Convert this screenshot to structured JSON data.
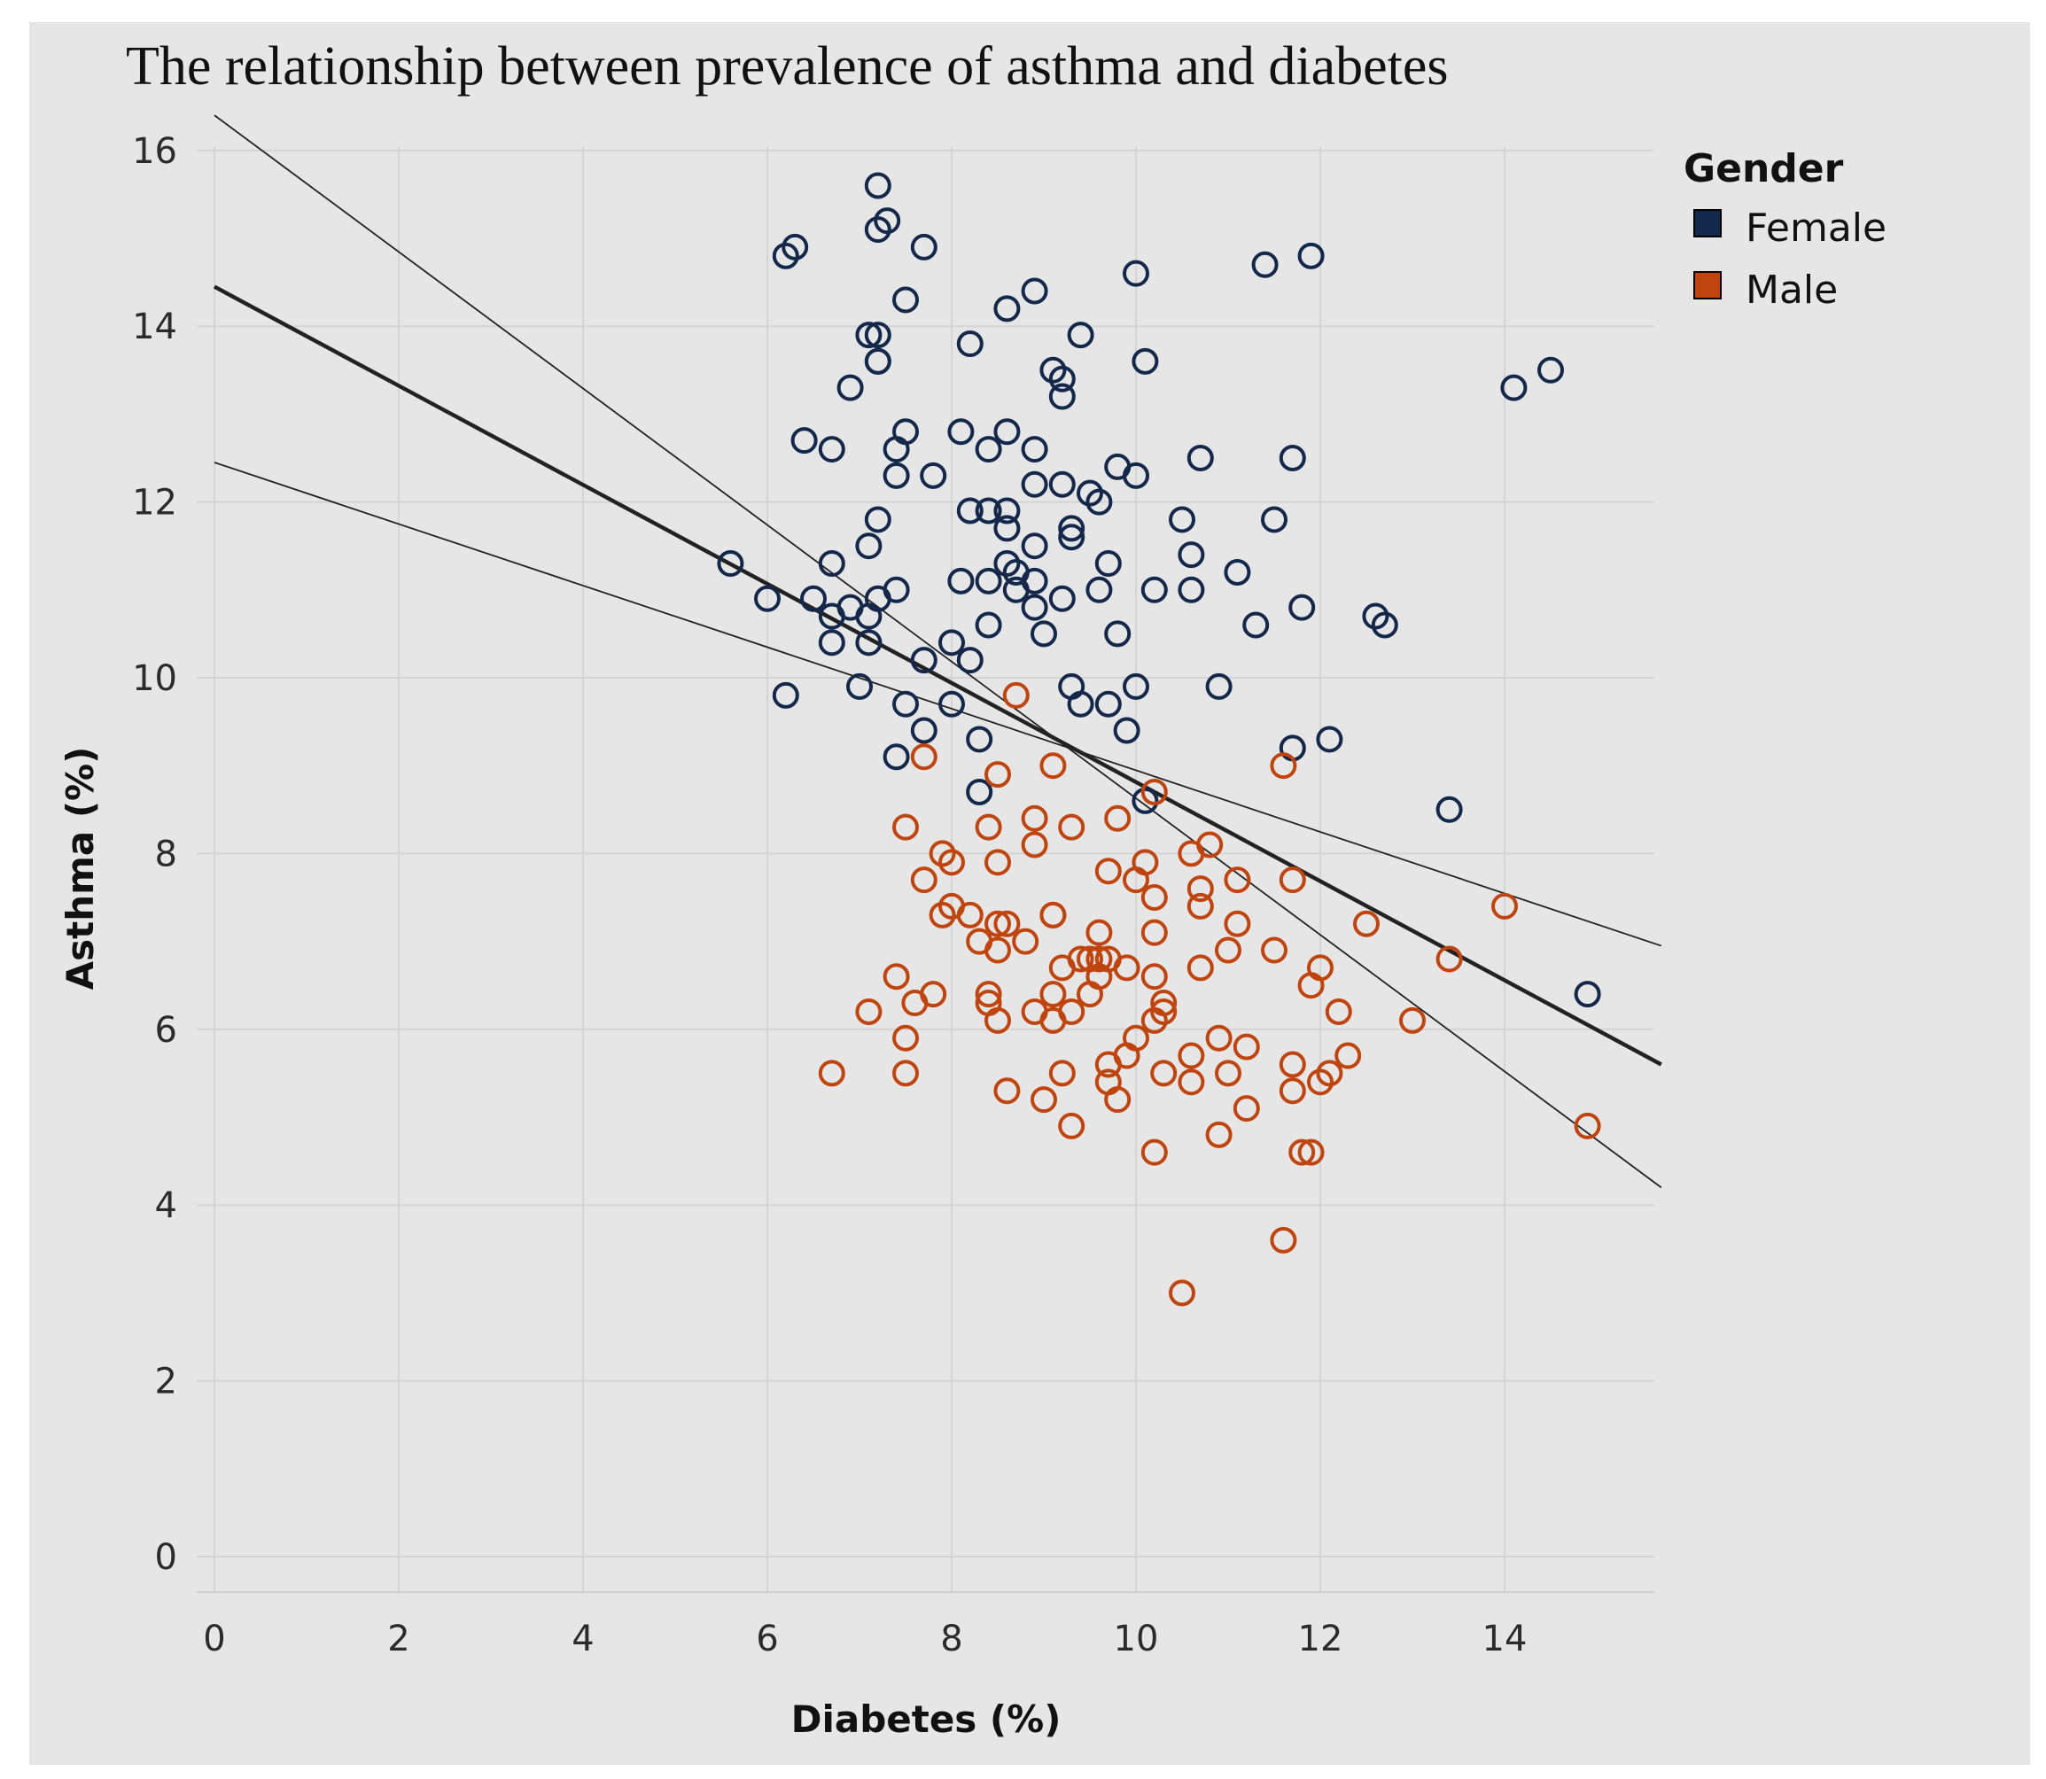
{
  "chart_data": {
    "type": "scatter",
    "title": "The relationship between prevalence of asthma and diabetes",
    "xlabel": "Diabetes (%)",
    "ylabel": "Asthma (%)",
    "xlim": [
      0,
      15.7
    ],
    "ylim": [
      0,
      16
    ],
    "xticks": [
      0,
      2,
      4,
      6,
      8,
      10,
      12,
      14
    ],
    "yticks": [
      0,
      2,
      4,
      6,
      8,
      10,
      12,
      14,
      16
    ],
    "grid": true,
    "legend": {
      "title": "Gender",
      "position": "top-right",
      "entries": [
        "Female",
        "Male"
      ]
    },
    "colors": {
      "Female": "#14284b",
      "Male": "#c0440e",
      "trend": "#222222",
      "grid": "#d4d4d4",
      "background": "#e6e6e6"
    },
    "trend_lines": {
      "fit": [
        [
          0,
          14.45
        ],
        [
          15.7,
          5.6
        ]
      ],
      "upper": [
        [
          0,
          16.4
        ],
        [
          15.7,
          4.2
        ]
      ],
      "lower": [
        [
          0,
          12.45
        ],
        [
          15.7,
          6.95
        ]
      ]
    },
    "series": [
      {
        "name": "Female",
        "points": [
          [
            7.2,
            15.6
          ],
          [
            7.3,
            15.2
          ],
          [
            7.2,
            15.1
          ],
          [
            6.2,
            14.8
          ],
          [
            6.3,
            14.9
          ],
          [
            7.7,
            14.9
          ],
          [
            10.0,
            14.6
          ],
          [
            11.4,
            14.7
          ],
          [
            11.9,
            14.8
          ],
          [
            8.6,
            14.2
          ],
          [
            8.9,
            14.4
          ],
          [
            7.5,
            14.3
          ],
          [
            7.1,
            13.9
          ],
          [
            7.2,
            13.9
          ],
          [
            9.4,
            13.9
          ],
          [
            8.2,
            13.8
          ],
          [
            7.2,
            13.6
          ],
          [
            7.2,
            13.6
          ],
          [
            9.1,
            13.5
          ],
          [
            9.2,
            13.4
          ],
          [
            9.2,
            13.2
          ],
          [
            10.1,
            13.6
          ],
          [
            6.9,
            13.3
          ],
          [
            14.1,
            13.3
          ],
          [
            14.5,
            13.5
          ],
          [
            6.4,
            12.7
          ],
          [
            6.7,
            12.6
          ],
          [
            7.5,
            12.8
          ],
          [
            7.4,
            12.6
          ],
          [
            8.1,
            12.8
          ],
          [
            8.6,
            12.8
          ],
          [
            8.4,
            12.6
          ],
          [
            8.9,
            12.6
          ],
          [
            10.7,
            12.5
          ],
          [
            11.7,
            12.5
          ],
          [
            7.4,
            12.3
          ],
          [
            7.8,
            12.3
          ],
          [
            8.9,
            12.2
          ],
          [
            9.2,
            12.2
          ],
          [
            9.5,
            12.1
          ],
          [
            9.6,
            12.0
          ],
          [
            9.8,
            12.4
          ],
          [
            10.0,
            12.3
          ],
          [
            7.2,
            11.8
          ],
          [
            8.2,
            11.9
          ],
          [
            8.4,
            11.9
          ],
          [
            8.6,
            11.9
          ],
          [
            8.6,
            11.7
          ],
          [
            9.3,
            11.7
          ],
          [
            9.3,
            11.6
          ],
          [
            10.5,
            11.8
          ],
          [
            11.5,
            11.8
          ],
          [
            5.6,
            11.3
          ],
          [
            6.7,
            11.3
          ],
          [
            7.1,
            11.5
          ],
          [
            8.6,
            11.3
          ],
          [
            8.7,
            11.2
          ],
          [
            8.9,
            11.5
          ],
          [
            9.7,
            11.3
          ],
          [
            10.6,
            11.4
          ],
          [
            11.1,
            11.2
          ],
          [
            6.0,
            10.9
          ],
          [
            6.5,
            10.9
          ],
          [
            6.7,
            10.7
          ],
          [
            6.9,
            10.8
          ],
          [
            7.1,
            10.7
          ],
          [
            7.2,
            10.9
          ],
          [
            7.4,
            11.0
          ],
          [
            8.1,
            11.1
          ],
          [
            8.4,
            11.1
          ],
          [
            8.7,
            11.0
          ],
          [
            8.9,
            11.1
          ],
          [
            9.2,
            10.9
          ],
          [
            9.6,
            11.0
          ],
          [
            10.2,
            11.0
          ],
          [
            10.6,
            11.0
          ],
          [
            8.9,
            10.8
          ],
          [
            8.4,
            10.6
          ],
          [
            9.0,
            10.5
          ],
          [
            9.8,
            10.5
          ],
          [
            11.3,
            10.6
          ],
          [
            11.8,
            10.8
          ],
          [
            12.6,
            10.7
          ],
          [
            12.7,
            10.6
          ],
          [
            6.7,
            10.4
          ],
          [
            7.1,
            10.4
          ],
          [
            7.7,
            10.2
          ],
          [
            8.0,
            10.4
          ],
          [
            8.2,
            10.2
          ],
          [
            6.2,
            9.8
          ],
          [
            7.0,
            9.9
          ],
          [
            7.5,
            9.7
          ],
          [
            8.0,
            9.7
          ],
          [
            9.3,
            9.9
          ],
          [
            9.4,
            9.7
          ],
          [
            9.7,
            9.7
          ],
          [
            10.0,
            9.9
          ],
          [
            10.9,
            9.9
          ],
          [
            7.7,
            9.4
          ],
          [
            8.3,
            9.3
          ],
          [
            9.9,
            9.4
          ],
          [
            7.4,
            9.1
          ],
          [
            11.7,
            9.2
          ],
          [
            12.1,
            9.3
          ],
          [
            8.3,
            8.7
          ],
          [
            10.1,
            8.6
          ],
          [
            13.4,
            8.5
          ],
          [
            14.9,
            6.4
          ]
        ]
      },
      {
        "name": "Male",
        "points": [
          [
            8.7,
            9.8
          ],
          [
            7.7,
            9.1
          ],
          [
            8.5,
            8.9
          ],
          [
            9.1,
            9.0
          ],
          [
            11.6,
            9.0
          ],
          [
            10.2,
            8.7
          ],
          [
            7.5,
            8.3
          ],
          [
            8.4,
            8.3
          ],
          [
            8.9,
            8.4
          ],
          [
            9.3,
            8.3
          ],
          [
            9.8,
            8.4
          ],
          [
            7.9,
            8.0
          ],
          [
            8.0,
            7.9
          ],
          [
            8.9,
            8.1
          ],
          [
            10.6,
            8.0
          ],
          [
            10.8,
            8.1
          ],
          [
            7.7,
            7.7
          ],
          [
            8.5,
            7.9
          ],
          [
            9.7,
            7.8
          ],
          [
            10.0,
            7.7
          ],
          [
            10.1,
            7.9
          ],
          [
            10.7,
            7.6
          ],
          [
            11.1,
            7.7
          ],
          [
            11.7,
            7.7
          ],
          [
            14.0,
            7.4
          ],
          [
            7.9,
            7.3
          ],
          [
            8.0,
            7.4
          ],
          [
            8.2,
            7.3
          ],
          [
            8.5,
            7.2
          ],
          [
            8.6,
            7.2
          ],
          [
            9.1,
            7.3
          ],
          [
            9.1,
            7.3
          ],
          [
            10.2,
            7.5
          ],
          [
            10.7,
            7.4
          ],
          [
            12.5,
            7.2
          ],
          [
            8.3,
            7.0
          ],
          [
            8.5,
            6.9
          ],
          [
            8.8,
            7.0
          ],
          [
            9.6,
            7.1
          ],
          [
            10.2,
            7.1
          ],
          [
            11.1,
            7.2
          ],
          [
            11.0,
            6.9
          ],
          [
            11.5,
            6.9
          ],
          [
            9.2,
            6.7
          ],
          [
            9.4,
            6.8
          ],
          [
            9.5,
            6.8
          ],
          [
            9.6,
            6.8
          ],
          [
            9.7,
            6.8
          ],
          [
            9.6,
            6.6
          ],
          [
            9.9,
            6.7
          ],
          [
            10.2,
            6.6
          ],
          [
            10.7,
            6.7
          ],
          [
            12.0,
            6.7
          ],
          [
            11.9,
            6.5
          ],
          [
            13.4,
            6.8
          ],
          [
            7.4,
            6.6
          ],
          [
            7.6,
            6.3
          ],
          [
            7.8,
            6.4
          ],
          [
            8.4,
            6.4
          ],
          [
            8.4,
            6.3
          ],
          [
            9.1,
            6.4
          ],
          [
            9.5,
            6.4
          ],
          [
            7.1,
            6.2
          ],
          [
            8.5,
            6.1
          ],
          [
            8.9,
            6.2
          ],
          [
            9.1,
            6.1
          ],
          [
            9.3,
            6.2
          ],
          [
            10.0,
            5.9
          ],
          [
            10.2,
            6.1
          ],
          [
            10.3,
            6.2
          ],
          [
            10.3,
            6.3
          ],
          [
            12.2,
            6.2
          ],
          [
            13.0,
            6.1
          ],
          [
            7.5,
            5.9
          ],
          [
            9.9,
            5.7
          ],
          [
            10.6,
            5.7
          ],
          [
            10.9,
            5.9
          ],
          [
            11.2,
            5.8
          ],
          [
            12.3,
            5.7
          ],
          [
            6.7,
            5.5
          ],
          [
            7.5,
            5.5
          ],
          [
            9.2,
            5.5
          ],
          [
            9.7,
            5.6
          ],
          [
            10.3,
            5.5
          ],
          [
            10.6,
            5.4
          ],
          [
            11.0,
            5.5
          ],
          [
            11.7,
            5.6
          ],
          [
            12.1,
            5.5
          ],
          [
            12.0,
            5.4
          ],
          [
            8.6,
            5.3
          ],
          [
            9.7,
            5.4
          ],
          [
            11.2,
            5.1
          ],
          [
            11.7,
            5.3
          ],
          [
            9.0,
            5.2
          ],
          [
            9.8,
            5.2
          ],
          [
            9.3,
            4.9
          ],
          [
            10.9,
            4.8
          ],
          [
            14.9,
            4.9
          ],
          [
            10.2,
            4.6
          ],
          [
            11.8,
            4.6
          ],
          [
            11.9,
            4.6
          ],
          [
            11.6,
            3.6
          ],
          [
            10.5,
            3.0
          ]
        ]
      }
    ]
  }
}
